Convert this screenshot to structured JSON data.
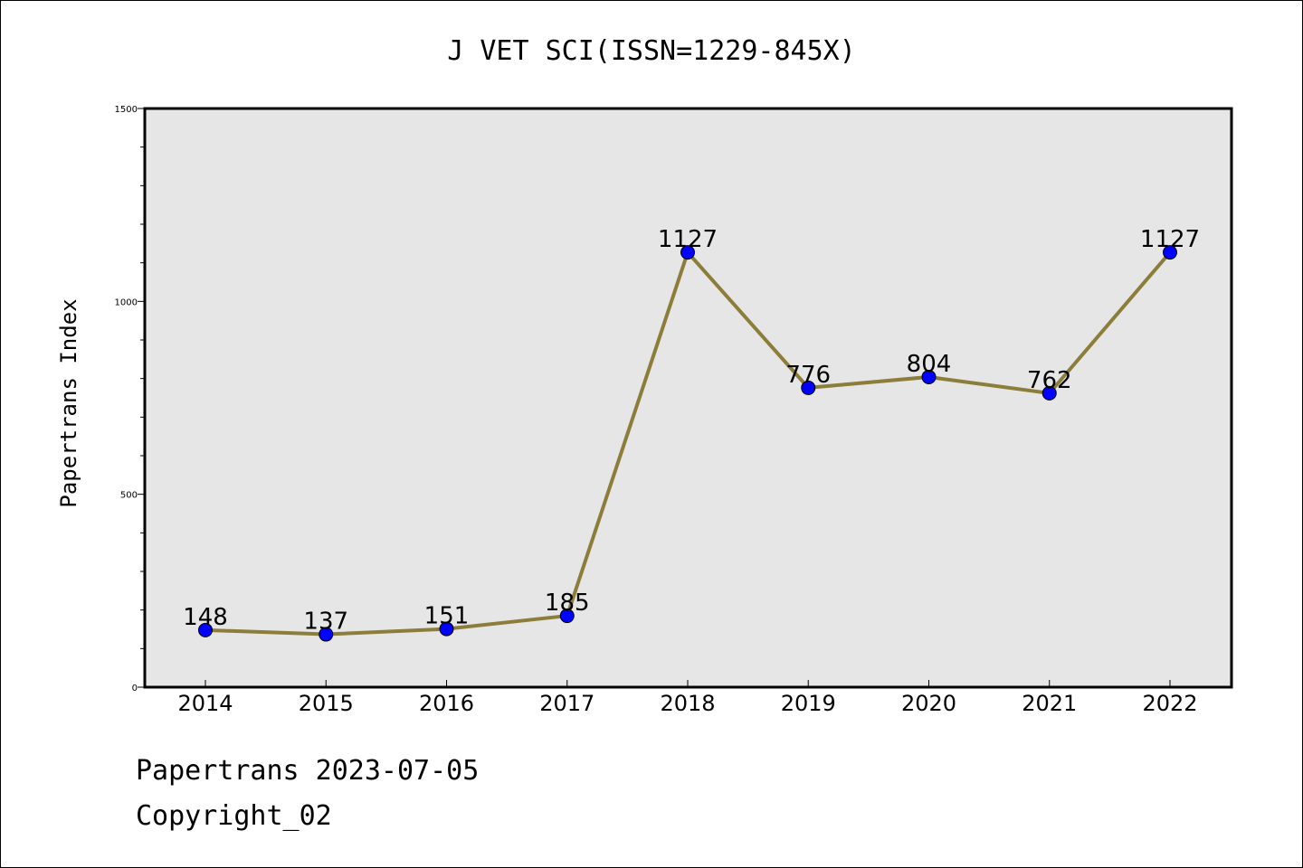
{
  "colors": {
    "plot_background": "#e6e6e6",
    "line": "#8c7d3a",
    "marker": "#0000ff",
    "frame": "#000000"
  },
  "footer": {
    "date_line": "Papertrans 2023-07-05",
    "copyright_line": "Copyright_02"
  },
  "chart_data": {
    "type": "line",
    "title": "J VET SCI(ISSN=1229-845X)",
    "xlabel": "",
    "ylabel": "Papertrans Index",
    "categories": [
      "2014",
      "2015",
      "2016",
      "2017",
      "2018",
      "2019",
      "2020",
      "2021",
      "2022"
    ],
    "series": [
      {
        "values": [
          148,
          137,
          151,
          185,
          1127,
          776,
          804,
          762,
          1127
        ]
      }
    ],
    "data_labels": [
      "148",
      "137",
      "151",
      "185",
      "1127",
      "776",
      "804",
      "762",
      "1127"
    ],
    "yticks": [
      0,
      500,
      1000,
      1500
    ],
    "ytick_labels": [
      "0",
      "500",
      "1000",
      "1500"
    ],
    "ylim": [
      0,
      1500
    ],
    "grid": false,
    "legend": "none"
  }
}
